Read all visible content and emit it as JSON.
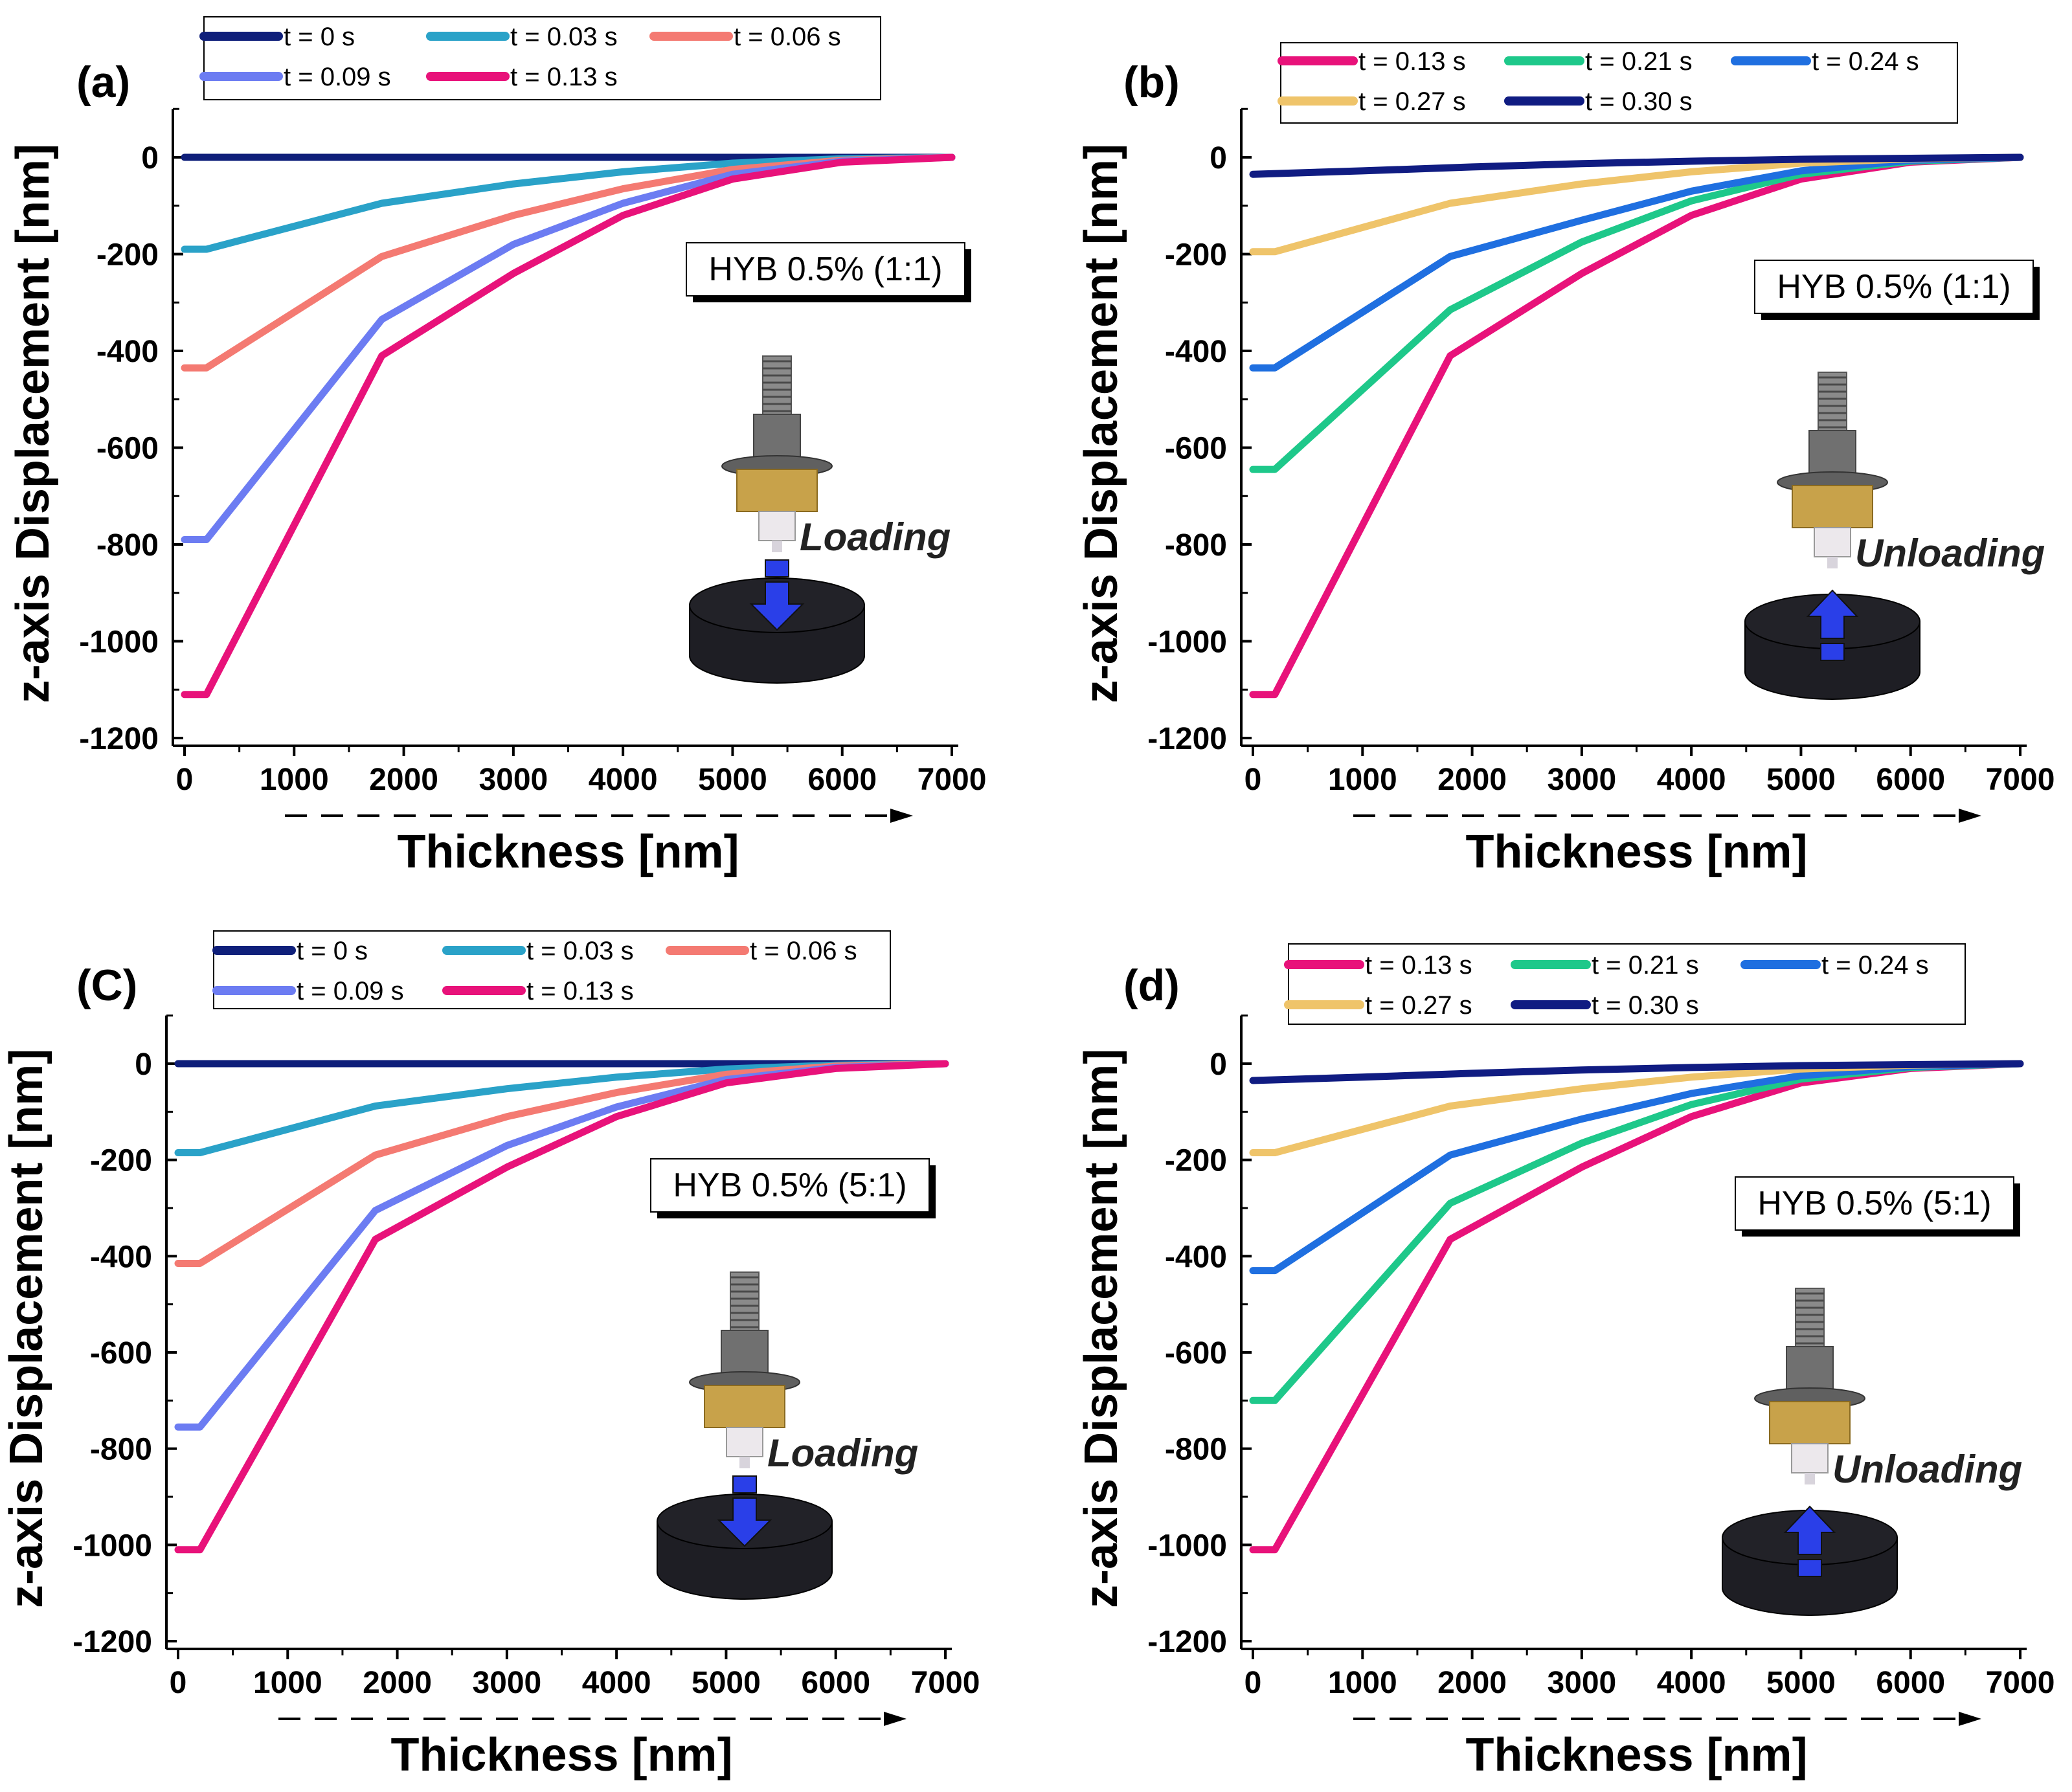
{
  "colors": {
    "t_0": "#0f1f7a",
    "t_003": "#2aa2c8",
    "t_006": "#f47a72",
    "t_009": "#6c7cf2",
    "t_013": "#e8127a",
    "t_021": "#1ec88a",
    "t_024": "#1f6fe0",
    "t_027": "#efc46a",
    "t_030": "#101c82",
    "arrow": "#2a3fe8",
    "disk": "#222228"
  },
  "icons": [
    "indenter-tip-icon",
    "sample-disk-icon",
    "direction-arrow-icon"
  ],
  "chart_data": [
    {
      "type": "line",
      "panel_label": "(a)",
      "title": "",
      "xlabel": "Thickness [nm]",
      "ylabel": "z-axis Displacement [nm]",
      "xlim": [
        0,
        7000
      ],
      "ylim": [
        -1200,
        100
      ],
      "xticks": [
        "0",
        "1000",
        "2000",
        "3000",
        "4000",
        "5000",
        "6000",
        "7000"
      ],
      "yticks": [
        "0",
        "-200",
        "-400",
        "-600",
        "-800",
        "-1000",
        "-1200"
      ],
      "legend": [
        "t = 0 s",
        "t = 0.03 s",
        "t = 0.06 s",
        "t = 0.09 s",
        "t = 0.13 s"
      ],
      "material_label": "HYB 0.5% (1:1)",
      "action_label": "Loading",
      "action": "loading",
      "series": [
        {
          "name": "t = 0 s",
          "color_key": "t_0",
          "x": [
            0,
            7000
          ],
          "y": [
            0,
            0
          ]
        },
        {
          "name": "t = 0.03 s",
          "color_key": "t_003",
          "x": [
            0,
            200,
            1800,
            3000,
            4000,
            5000,
            6000,
            7000
          ],
          "y": [
            -190,
            -190,
            -95,
            -55,
            -30,
            -12,
            -3,
            0
          ]
        },
        {
          "name": "t = 0.06 s",
          "color_key": "t_006",
          "x": [
            0,
            200,
            1800,
            3000,
            4000,
            5000,
            6000,
            7000
          ],
          "y": [
            -435,
            -435,
            -205,
            -120,
            -65,
            -25,
            -6,
            0
          ]
        },
        {
          "name": "t = 0.09 s",
          "color_key": "t_009",
          "x": [
            0,
            200,
            1800,
            3000,
            4000,
            5000,
            6000,
            7000
          ],
          "y": [
            -790,
            -790,
            -335,
            -180,
            -95,
            -35,
            -8,
            0
          ]
        },
        {
          "name": "t = 0.13 s",
          "color_key": "t_013",
          "x": [
            0,
            200,
            1800,
            3000,
            4000,
            5000,
            6000,
            7000
          ],
          "y": [
            -1110,
            -1110,
            -410,
            -240,
            -120,
            -45,
            -10,
            0
          ]
        }
      ]
    },
    {
      "type": "line",
      "panel_label": "(b)",
      "title": "",
      "xlabel": "Thickness [nm]",
      "ylabel": "z-axis Displacement [nm]",
      "xlim": [
        0,
        7000
      ],
      "ylim": [
        -1200,
        100
      ],
      "xticks": [
        "0",
        "1000",
        "2000",
        "3000",
        "4000",
        "5000",
        "6000",
        "7000"
      ],
      "yticks": [
        "0",
        "-200",
        "-400",
        "-600",
        "-800",
        "-1000",
        "-1200"
      ],
      "legend": [
        "t = 0.13 s",
        "t = 0.21 s",
        "t = 0.24 s",
        "t = 0.27 s",
        "t = 0.30 s"
      ],
      "material_label": "HYB 0.5% (1:1)",
      "action_label": "Unloading",
      "action": "unloading",
      "series": [
        {
          "name": "t = 0.13 s",
          "color_key": "t_013",
          "x": [
            0,
            200,
            1800,
            3000,
            4000,
            5000,
            6000,
            7000
          ],
          "y": [
            -1110,
            -1110,
            -410,
            -240,
            -120,
            -45,
            -10,
            0
          ]
        },
        {
          "name": "t = 0.21 s",
          "color_key": "t_021",
          "x": [
            0,
            200,
            1800,
            3000,
            4000,
            5000,
            6000,
            7000
          ],
          "y": [
            -645,
            -645,
            -315,
            -175,
            -90,
            -35,
            -8,
            0
          ]
        },
        {
          "name": "t = 0.24 s",
          "color_key": "t_024",
          "x": [
            0,
            200,
            1800,
            3000,
            4000,
            5000,
            6000,
            7000
          ],
          "y": [
            -435,
            -435,
            -205,
            -130,
            -70,
            -28,
            -6,
            0
          ]
        },
        {
          "name": "t = 0.27 s",
          "color_key": "t_027",
          "x": [
            0,
            200,
            1800,
            3000,
            4000,
            5000,
            6000,
            7000
          ],
          "y": [
            -195,
            -195,
            -95,
            -55,
            -30,
            -12,
            -3,
            0
          ]
        },
        {
          "name": "t = 0.30 s",
          "color_key": "t_030",
          "x": [
            0,
            1000,
            2000,
            3000,
            4000,
            5000,
            6000,
            7000
          ],
          "y": [
            -35,
            -28,
            -20,
            -13,
            -8,
            -4,
            -2,
            0
          ]
        }
      ]
    },
    {
      "type": "line",
      "panel_label": "(C)",
      "title": "",
      "xlabel": "Thickness [nm]",
      "ylabel": "z-axis Displacement [nm]",
      "xlim": [
        0,
        7000
      ],
      "ylim": [
        -1200,
        100
      ],
      "xticks": [
        "0",
        "1000",
        "2000",
        "3000",
        "4000",
        "5000",
        "6000",
        "7000"
      ],
      "yticks": [
        "0",
        "-200",
        "-400",
        "-600",
        "-800",
        "-1000",
        "-1200"
      ],
      "legend": [
        "t = 0 s",
        "t = 0.03 s",
        "t = 0.06 s",
        "t = 0.09 s",
        "t = 0.13 s"
      ],
      "material_label": "HYB 0.5% (5:1)",
      "action_label": "Loading",
      "action": "loading",
      "series": [
        {
          "name": "t = 0 s",
          "color_key": "t_0",
          "x": [
            0,
            7000
          ],
          "y": [
            0,
            0
          ]
        },
        {
          "name": "t = 0.03 s",
          "color_key": "t_003",
          "x": [
            0,
            200,
            1800,
            3000,
            4000,
            5000,
            6000,
            7000
          ],
          "y": [
            -185,
            -185,
            -88,
            -52,
            -28,
            -11,
            -3,
            0
          ]
        },
        {
          "name": "t = 0.06 s",
          "color_key": "t_006",
          "x": [
            0,
            200,
            1800,
            3000,
            4000,
            5000,
            6000,
            7000
          ],
          "y": [
            -415,
            -415,
            -190,
            -110,
            -60,
            -22,
            -5,
            0
          ]
        },
        {
          "name": "t = 0.09 s",
          "color_key": "t_009",
          "x": [
            0,
            200,
            1800,
            3000,
            4000,
            5000,
            6000,
            7000
          ],
          "y": [
            -755,
            -755,
            -305,
            -170,
            -90,
            -33,
            -8,
            0
          ]
        },
        {
          "name": "t = 0.13 s",
          "color_key": "t_013",
          "x": [
            0,
            200,
            1800,
            3000,
            4000,
            5000,
            6000,
            7000
          ],
          "y": [
            -1010,
            -1010,
            -365,
            -215,
            -110,
            -40,
            -10,
            0
          ]
        }
      ]
    },
    {
      "type": "line",
      "panel_label": "(d)",
      "title": "",
      "xlabel": "Thickness [nm]",
      "ylabel": "z-axis Displacement [nm]",
      "xlim": [
        0,
        7000
      ],
      "ylim": [
        -1200,
        100
      ],
      "xticks": [
        "0",
        "1000",
        "2000",
        "3000",
        "4000",
        "5000",
        "6000",
        "7000"
      ],
      "yticks": [
        "0",
        "-200",
        "-400",
        "-600",
        "-800",
        "-1000",
        "-1200"
      ],
      "legend": [
        "t = 0.13 s",
        "t = 0.21 s",
        "t = 0.24 s",
        "t = 0.27 s",
        "t = 0.30 s"
      ],
      "material_label": "HYB 0.5% (5:1)",
      "action_label": "Unloading",
      "action": "unloading",
      "series": [
        {
          "name": "t = 0.13 s",
          "color_key": "t_013",
          "x": [
            0,
            200,
            1800,
            3000,
            4000,
            5000,
            6000,
            7000
          ],
          "y": [
            -1010,
            -1010,
            -365,
            -215,
            -110,
            -40,
            -10,
            0
          ]
        },
        {
          "name": "t = 0.21 s",
          "color_key": "t_021",
          "x": [
            0,
            200,
            1800,
            3000,
            4000,
            5000,
            6000,
            7000
          ],
          "y": [
            -700,
            -700,
            -290,
            -165,
            -85,
            -32,
            -8,
            0
          ]
        },
        {
          "name": "t = 0.24 s",
          "color_key": "t_024",
          "x": [
            0,
            200,
            1800,
            3000,
            4000,
            5000,
            6000,
            7000
          ],
          "y": [
            -430,
            -430,
            -190,
            -115,
            -62,
            -25,
            -6,
            0
          ]
        },
        {
          "name": "t = 0.27 s",
          "color_key": "t_027",
          "x": [
            0,
            200,
            1800,
            3000,
            4000,
            5000,
            6000,
            7000
          ],
          "y": [
            -185,
            -185,
            -88,
            -52,
            -28,
            -11,
            -3,
            0
          ]
        },
        {
          "name": "t = 0.30 s",
          "color_key": "t_030",
          "x": [
            0,
            1000,
            2000,
            3000,
            4000,
            5000,
            6000,
            7000
          ],
          "y": [
            -35,
            -28,
            -20,
            -13,
            -8,
            -4,
            -2,
            0
          ]
        }
      ]
    }
  ]
}
